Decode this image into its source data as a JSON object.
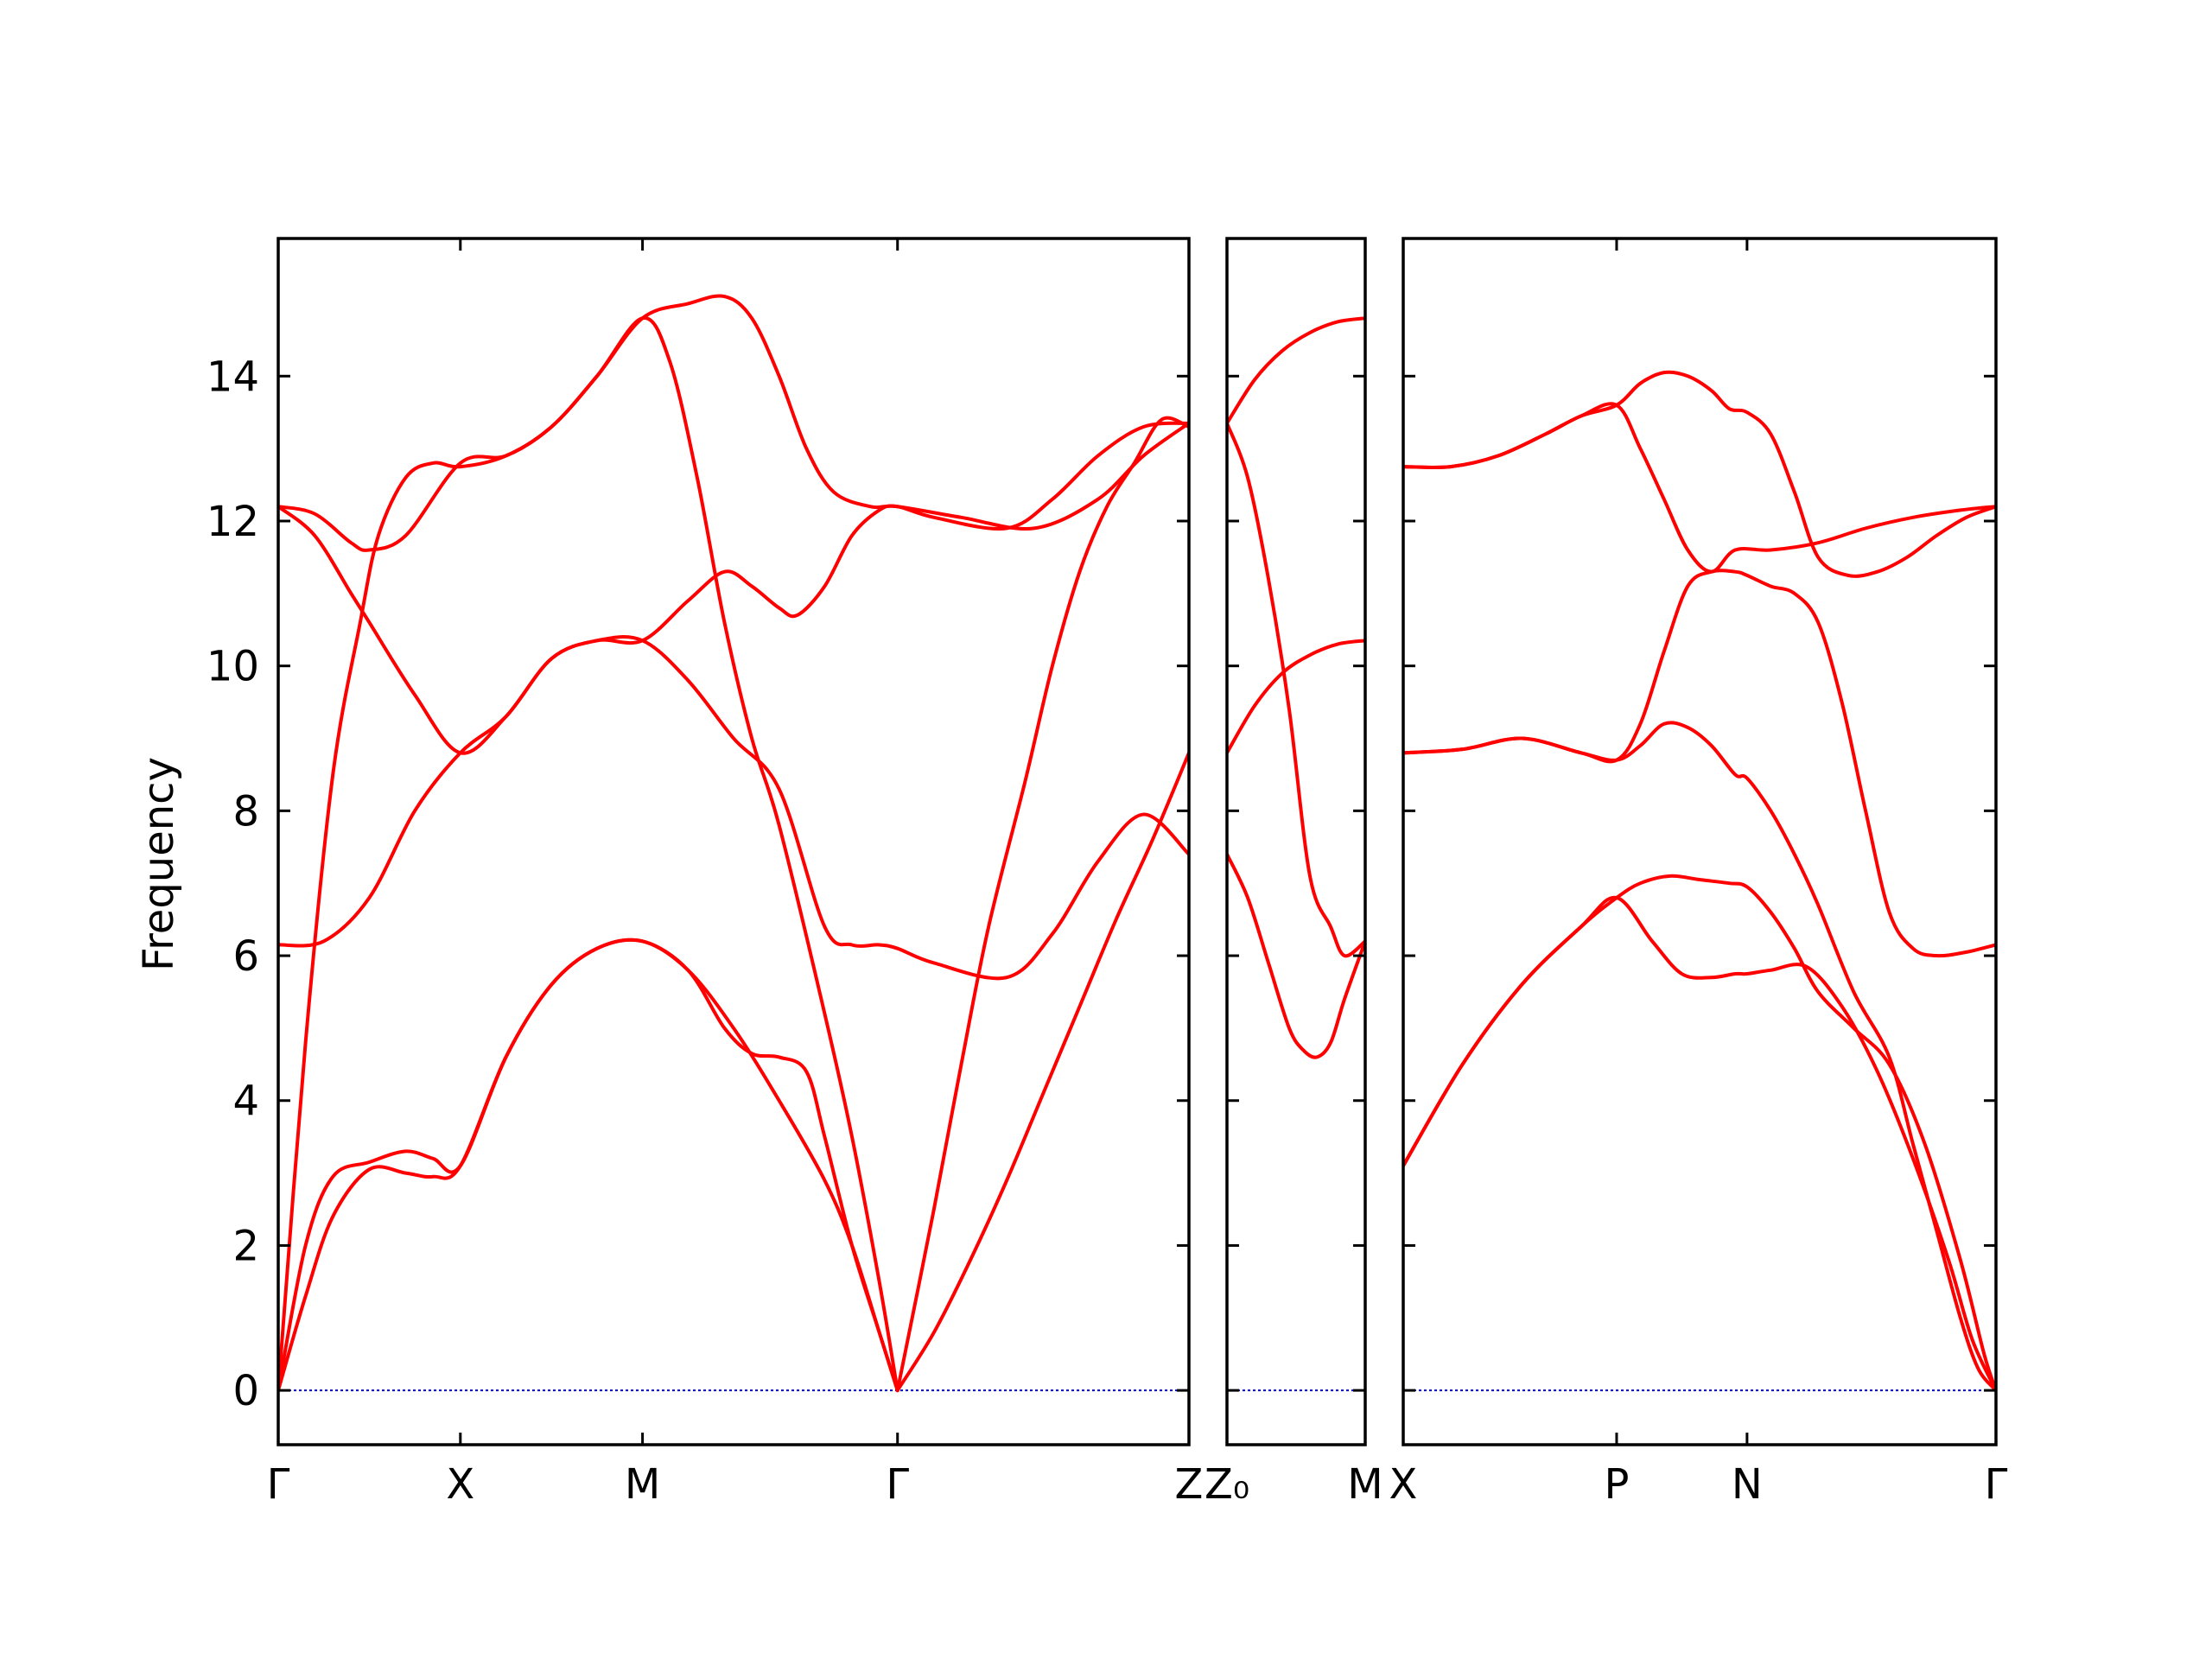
{
  "chart_data": {
    "type": "line",
    "ylabel": "Frequency",
    "xlabel": "",
    "title": "",
    "ylim": [
      -0.75,
      15.9
    ],
    "yticks": [
      0,
      2,
      4,
      6,
      8,
      10,
      12,
      14
    ],
    "grid": false,
    "zero_line_color": "#0000cc",
    "band_color": "#ff0000",
    "panels": [
      {
        "name": "panel-1",
        "xlim": [
          0,
          1
        ],
        "ticks": [
          {
            "x": 0.0,
            "label": "Γ"
          },
          {
            "x": 0.2,
            "label": "X"
          },
          {
            "x": 0.4,
            "label": "M"
          },
          {
            "x": 0.68,
            "label": "Γ"
          },
          {
            "x": 1.0,
            "label": "Z"
          }
        ],
        "series": [
          {
            "x": [
              0.0,
              0.03,
              0.06,
              0.1,
              0.14,
              0.17,
              0.2,
              0.25,
              0.3,
              0.35,
              0.4,
              0.45,
              0.5,
              0.55,
              0.6,
              0.63,
              0.66,
              0.68
            ],
            "y": [
              0.0,
              1.3,
              2.4,
              3.05,
              3.0,
              2.95,
              3.1,
              4.6,
              5.6,
              6.1,
              6.2,
              5.8,
              5.0,
              4.0,
              2.9,
              2.0,
              0.8,
              0.0
            ]
          },
          {
            "x": [
              0.0,
              0.03,
              0.06,
              0.1,
              0.14,
              0.17,
              0.2,
              0.25,
              0.3,
              0.35,
              0.4,
              0.45,
              0.49,
              0.52,
              0.55,
              0.58,
              0.6,
              0.63,
              0.66,
              0.68
            ],
            "y": [
              0.0,
              2.0,
              2.95,
              3.15,
              3.3,
              3.2,
              3.1,
              4.6,
              5.6,
              6.1,
              6.2,
              5.8,
              5.0,
              4.65,
              4.6,
              4.4,
              3.5,
              2.0,
              0.8,
              0.0
            ]
          },
          {
            "x": [
              0.0,
              0.05,
              0.1,
              0.15,
              0.2,
              0.25,
              0.3,
              0.35,
              0.4,
              0.45,
              0.5,
              0.55,
              0.6,
              0.63,
              0.66,
              0.68,
              0.72,
              0.8,
              0.85,
              0.9,
              0.95,
              1.0
            ],
            "y": [
              6.15,
              6.2,
              6.8,
              8.0,
              8.8,
              9.3,
              10.1,
              10.35,
              10.35,
              9.8,
              9.0,
              8.3,
              6.4,
              6.15,
              6.15,
              6.1,
              5.9,
              5.7,
              6.3,
              7.3,
              7.95,
              7.4
            ]
          },
          {
            "x": [
              0.0,
              0.04,
              0.08,
              0.1,
              0.14,
              0.2,
              0.25,
              0.3,
              0.35,
              0.4,
              0.45,
              0.49,
              0.52,
              0.55,
              0.58,
              0.61,
              0.65,
              0.68,
              0.75,
              0.83,
              0.9,
              0.95,
              1.0
            ],
            "y": [
              12.2,
              12.1,
              11.7,
              11.6,
              11.8,
              12.8,
              12.9,
              13.3,
              14.0,
              14.8,
              15.0,
              15.1,
              14.8,
              14.0,
              13.0,
              12.4,
              12.2,
              12.2,
              12.05,
              11.9,
              12.3,
              12.9,
              13.35
            ]
          },
          {
            "x": [
              0.0,
              0.04,
              0.08,
              0.1,
              0.15,
              0.2,
              0.25,
              0.3,
              0.35,
              0.4,
              0.45,
              0.49,
              0.52,
              0.55,
              0.57,
              0.6,
              0.63,
              0.66,
              0.68,
              0.72,
              0.8,
              0.85,
              0.9,
              0.95,
              1.0
            ],
            "y": [
              12.2,
              11.8,
              11.0,
              10.6,
              9.6,
              8.8,
              9.3,
              10.1,
              10.35,
              10.35,
              10.9,
              11.3,
              11.1,
              10.8,
              10.7,
              11.1,
              11.8,
              12.15,
              12.2,
              12.05,
              11.9,
              12.3,
              12.9,
              13.3,
              13.35
            ]
          },
          {
            "x": [
              0.0,
              0.03,
              0.06,
              0.09,
              0.11,
              0.14,
              0.17,
              0.2,
              0.25,
              0.3,
              0.35,
              0.4,
              0.43,
              0.46,
              0.49,
              0.52,
              0.55,
              0.6,
              0.63,
              0.66,
              0.68
            ],
            "y": [
              0.0,
              4.8,
              8.5,
              10.6,
              11.8,
              12.6,
              12.8,
              12.75,
              12.9,
              13.3,
              14.0,
              14.8,
              14.2,
              12.6,
              10.6,
              9.0,
              7.8,
              5.2,
              3.5,
              1.5,
              0.0
            ]
          },
          {
            "x": [
              0.68,
              0.72,
              0.75,
              0.78,
              0.82,
              0.85,
              0.88,
              0.91,
              0.94,
              0.97,
              1.0
            ],
            "y": [
              0.0,
              2.5,
              4.5,
              6.4,
              8.4,
              10.0,
              11.3,
              12.2,
              12.8,
              13.4,
              13.3
            ]
          },
          {
            "x": [
              0.68,
              0.72,
              0.76,
              0.8,
              0.84,
              0.88,
              0.92,
              0.96,
              1.0
            ],
            "y": [
              0.0,
              0.8,
              1.8,
              2.9,
              4.1,
              5.3,
              6.5,
              7.6,
              8.8
            ]
          }
        ]
      },
      {
        "name": "panel-2",
        "xlim": [
          0,
          1
        ],
        "ticks": [
          {
            "x": 0.0,
            "label": "Z₀"
          },
          {
            "x": 1.0,
            "label": "M"
          }
        ],
        "series": [
          {
            "x": [
              0.0,
              0.2,
              0.4,
              0.6,
              0.8,
              1.0
            ],
            "y": [
              13.35,
              13.95,
              14.35,
              14.6,
              14.75,
              14.8
            ]
          },
          {
            "x": [
              0.0,
              0.2,
              0.4,
              0.6,
              0.8,
              1.0
            ],
            "y": [
              8.8,
              9.45,
              9.9,
              10.15,
              10.3,
              10.35
            ]
          },
          {
            "x": [
              0.0,
              0.15,
              0.3,
              0.45,
              0.6,
              0.75,
              0.85,
              1.0
            ],
            "y": [
              13.35,
              12.6,
              11.2,
              9.4,
              7.1,
              6.4,
              6.0,
              6.2
            ]
          },
          {
            "x": [
              0.0,
              0.15,
              0.3,
              0.45,
              0.55,
              0.65,
              0.75,
              0.85,
              1.0
            ],
            "y": [
              7.4,
              6.8,
              5.9,
              5.0,
              4.7,
              4.6,
              4.8,
              5.4,
              6.2
            ]
          }
        ]
      },
      {
        "name": "panel-3",
        "xlim": [
          0,
          1
        ],
        "ticks": [
          {
            "x": 0.0,
            "label": "X"
          },
          {
            "x": 0.36,
            "label": "P"
          },
          {
            "x": 0.58,
            "label": "N"
          },
          {
            "x": 1.0,
            "label": "Γ"
          }
        ],
        "series": [
          {
            "x": [
              0.0,
              0.1,
              0.2,
              0.3,
              0.36,
              0.42,
              0.47,
              0.52,
              0.56,
              0.58,
              0.62,
              0.68,
              0.74,
              0.8,
              0.86,
              0.92,
              0.96,
              1.0
            ],
            "y": [
              3.1,
              4.5,
              5.6,
              6.4,
              6.8,
              6.2,
              5.75,
              5.7,
              5.75,
              5.75,
              5.8,
              5.85,
              5.3,
              4.4,
              3.2,
              1.8,
              0.7,
              0.0
            ]
          },
          {
            "x": [
              0.0,
              0.1,
              0.2,
              0.3,
              0.36,
              0.4,
              0.45,
              0.5,
              0.55,
              0.58,
              0.62,
              0.66,
              0.7,
              0.76,
              0.82,
              0.88,
              0.94,
              0.98,
              1.0
            ],
            "y": [
              3.1,
              4.5,
              5.6,
              6.4,
              6.8,
              7.0,
              7.1,
              7.05,
              7.0,
              6.95,
              6.6,
              6.1,
              5.5,
              5.0,
              4.5,
              3.4,
              1.8,
              0.5,
              0.0
            ]
          },
          {
            "x": [
              0.0,
              0.1,
              0.2,
              0.3,
              0.36,
              0.4,
              0.44,
              0.48,
              0.52,
              0.56,
              0.58,
              0.62,
              0.66,
              0.7,
              0.76,
              0.82,
              0.86,
              0.9,
              0.94,
              0.97,
              1.0
            ],
            "y": [
              8.8,
              8.85,
              9.0,
              8.8,
              8.7,
              8.9,
              9.2,
              9.15,
              8.9,
              8.5,
              8.45,
              8.0,
              7.4,
              6.7,
              5.5,
              4.6,
              3.4,
              2.2,
              1.0,
              0.3,
              0.0
            ]
          },
          {
            "x": [
              0.0,
              0.1,
              0.2,
              0.3,
              0.36,
              0.4,
              0.44,
              0.48,
              0.52,
              0.56,
              0.58,
              0.62,
              0.66,
              0.7,
              0.74,
              0.78,
              0.82,
              0.86,
              0.9,
              0.95,
              1.0
            ],
            "y": [
              8.8,
              8.85,
              9.0,
              8.8,
              8.7,
              9.2,
              10.2,
              11.1,
              11.3,
              11.3,
              11.25,
              11.1,
              11.0,
              10.6,
              9.5,
              8.0,
              6.6,
              6.1,
              6.0,
              6.05,
              6.15
            ]
          },
          {
            "x": [
              0.0,
              0.08,
              0.16,
              0.24,
              0.3,
              0.36,
              0.4,
              0.44,
              0.48,
              0.52,
              0.55,
              0.58,
              0.62,
              0.66,
              0.7,
              0.75,
              0.8,
              0.85,
              0.9,
              0.95,
              1.0
            ],
            "y": [
              12.75,
              12.75,
              12.9,
              13.2,
              13.45,
              13.6,
              13.9,
              14.05,
              14.0,
              13.8,
              13.55,
              13.5,
              13.2,
              12.4,
              11.5,
              11.25,
              11.3,
              11.5,
              11.8,
              12.05,
              12.2
            ]
          },
          {
            "x": [
              0.0,
              0.08,
              0.16,
              0.24,
              0.3,
              0.36,
              0.4,
              0.44,
              0.48,
              0.52,
              0.56,
              0.62,
              0.7,
              0.78,
              0.86,
              0.94,
              1.0
            ],
            "y": [
              12.75,
              12.75,
              12.9,
              13.2,
              13.45,
              13.6,
              13.0,
              12.3,
              11.6,
              11.3,
              11.6,
              11.6,
              11.7,
              11.9,
              12.05,
              12.15,
              12.2
            ]
          }
        ]
      }
    ]
  }
}
